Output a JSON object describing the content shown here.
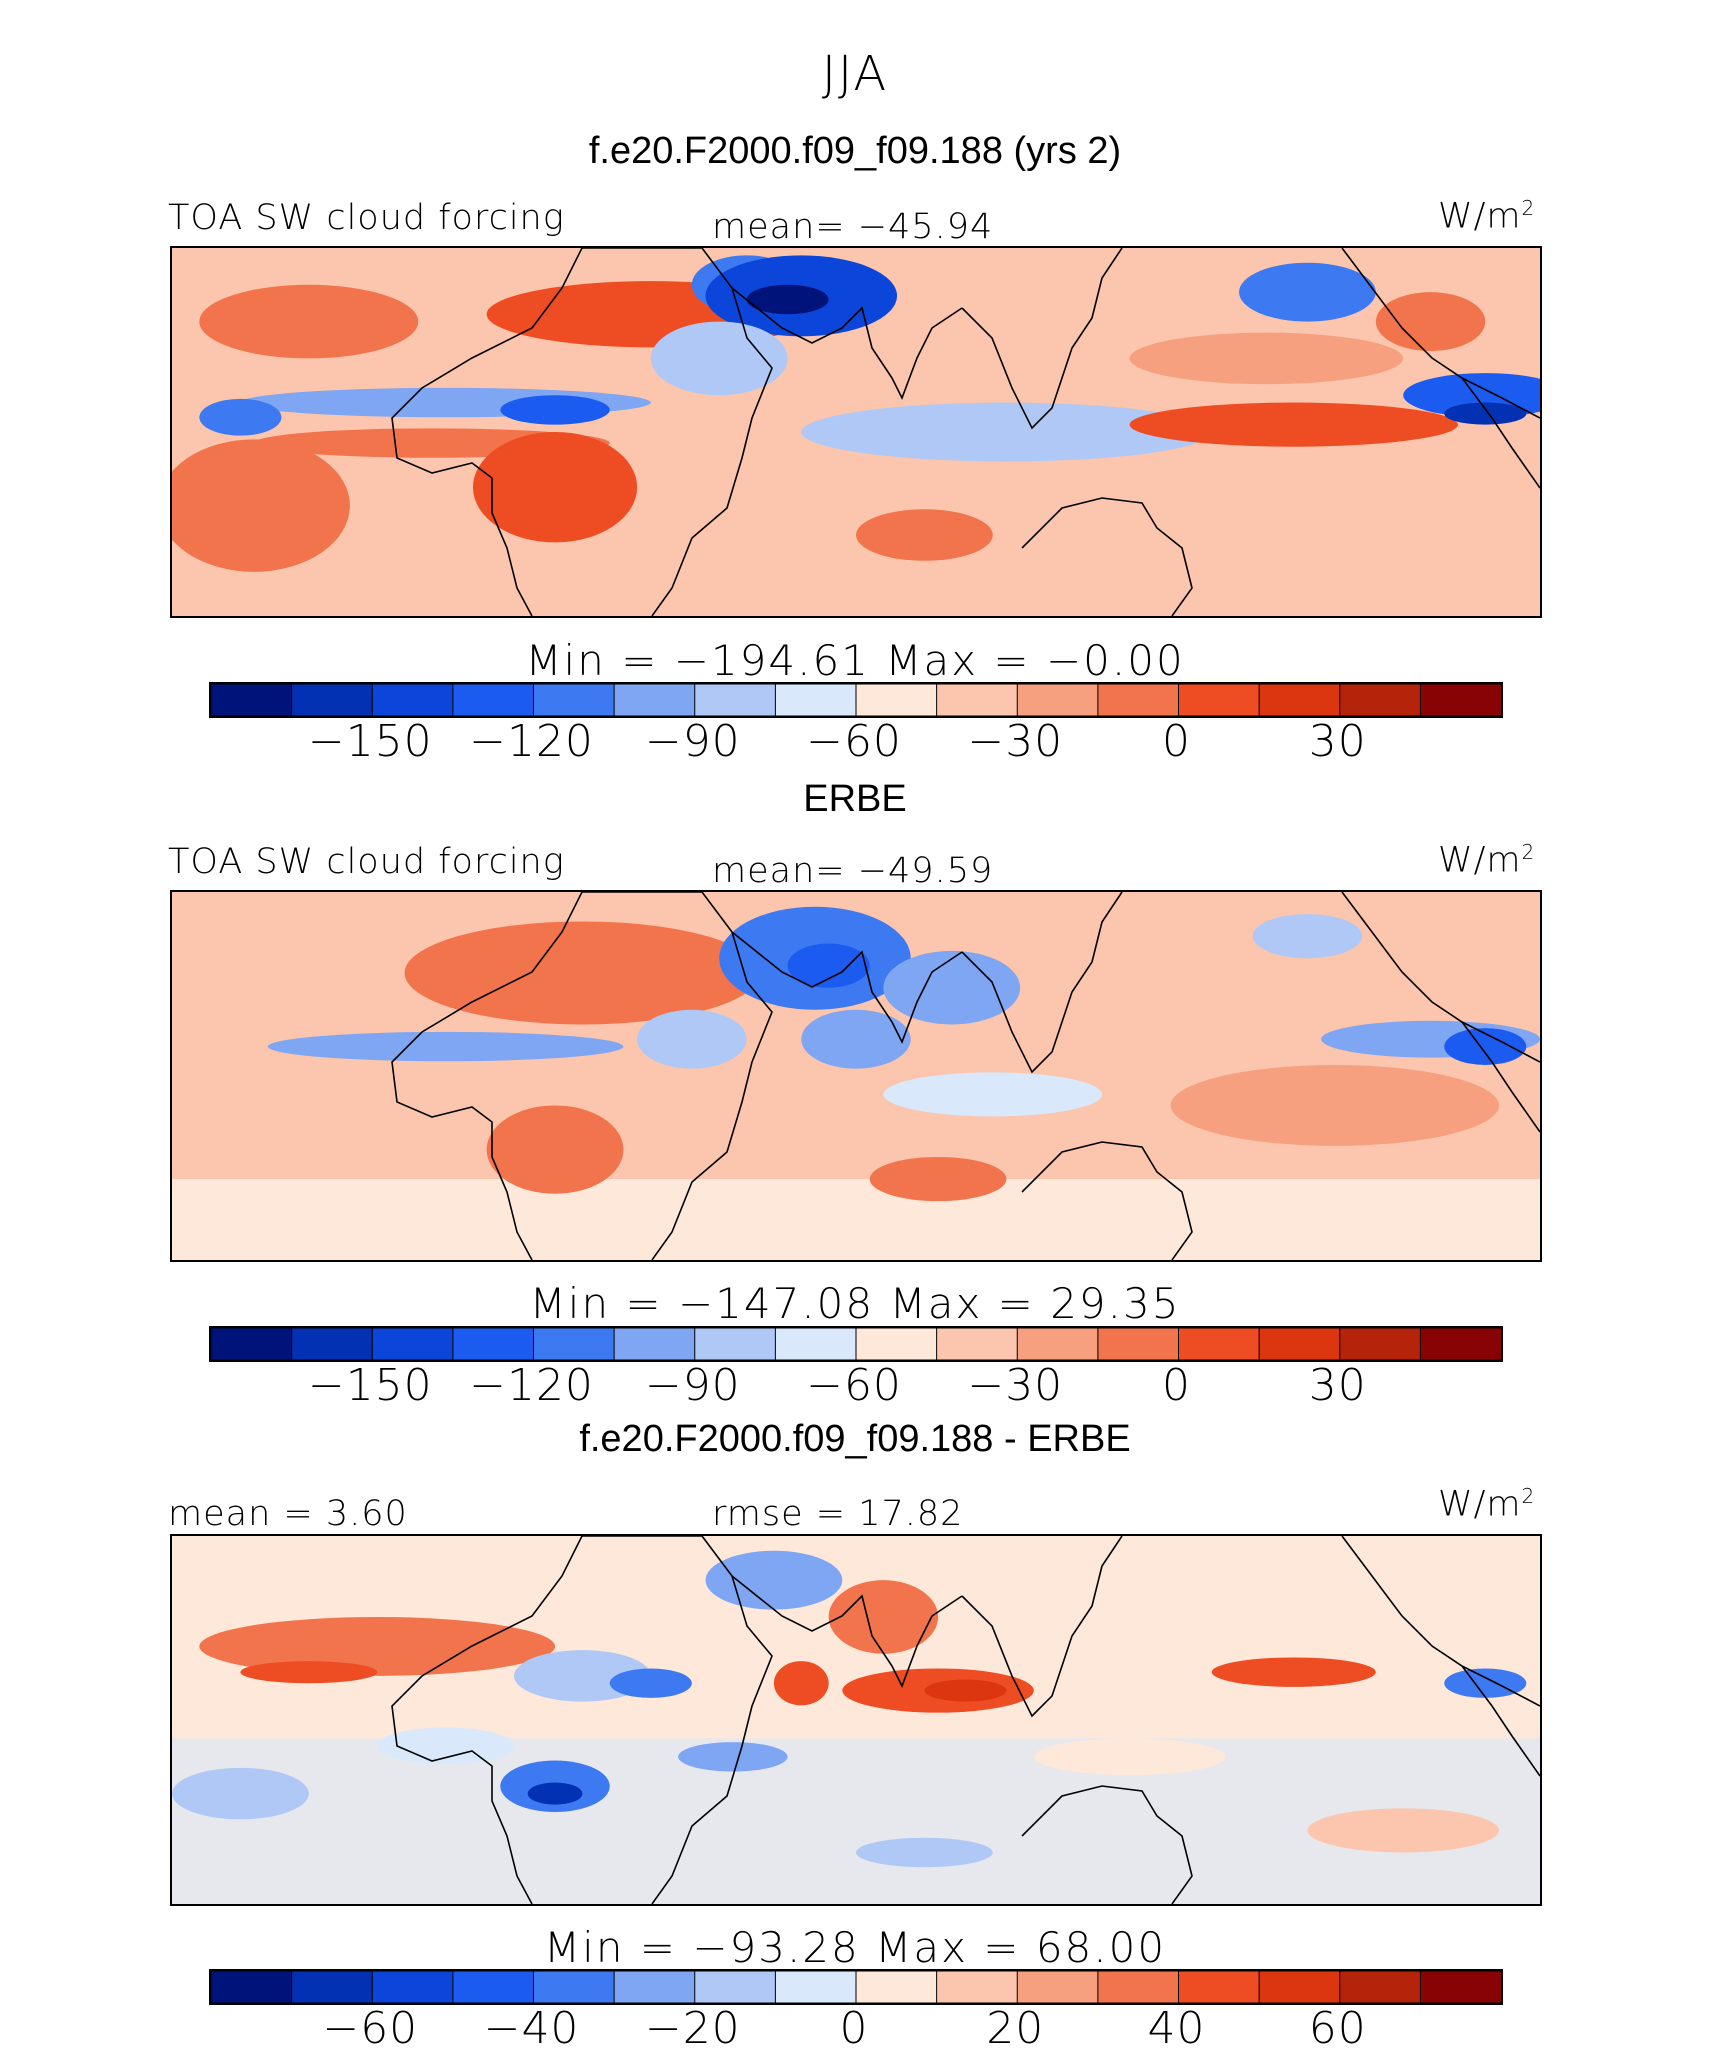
{
  "figure": {
    "season": "JJA",
    "model_title": "f.e20.F2000.f09_f09.188 (yrs 2)",
    "obs_title": "ERBE",
    "diff_title": "f.e20.F2000.f09_f09.188 - ERBE"
  },
  "panels": [
    {
      "id": "model",
      "left_label": "TOA SW cloud forcing",
      "center_label": "mean= −45.94",
      "units": "W/m",
      "units_sup": "2",
      "minmax": "Min  =  −194.61  Max  =    −0.00",
      "colorbar_ticks": [
        "−150",
        "−120",
        "−90",
        "−60",
        "−30",
        "0",
        "30"
      ]
    },
    {
      "id": "obs",
      "left_label": "TOA SW cloud forcing",
      "center_label": "mean= −49.59",
      "units": "W/m",
      "units_sup": "2",
      "minmax": "Min  =  −147.08  Max  =    29.35",
      "colorbar_ticks": [
        "−150",
        "−120",
        "−90",
        "−60",
        "−30",
        "0",
        "30"
      ]
    },
    {
      "id": "diff",
      "left_label": "mean  =    3.60",
      "center_label": "rmse  =   17.82",
      "units": "W/m",
      "units_sup": "2",
      "minmax": "Min  =  −93.28  Max  =    68.00",
      "colorbar_ticks": [
        "−60",
        "−40",
        "−20",
        "0",
        "20",
        "40",
        "60"
      ]
    }
  ],
  "colorbar_colors": [
    "#00137a",
    "#0231b4",
    "#0c45d9",
    "#1c5bef",
    "#3d79f0",
    "#7fa6f2",
    "#afc8f6",
    "#d9e8fb",
    "#fde8da",
    "#fbc6ad",
    "#f6a07f",
    "#f2744c",
    "#ee4c22",
    "#dc3611",
    "#b5230a",
    "#880404"
  ],
  "regions": {
    "model": [
      {
        "cx": 35,
        "cy": 18,
        "rx": 12,
        "ry": 9,
        "level": 12
      },
      {
        "cx": 10,
        "cy": 20,
        "rx": 8,
        "ry": 10,
        "level": 11
      },
      {
        "cx": 42,
        "cy": 10,
        "rx": 4,
        "ry": 8,
        "level": 4
      },
      {
        "cx": 46,
        "cy": 13,
        "rx": 7,
        "ry": 11,
        "level": 2
      },
      {
        "cx": 45,
        "cy": 14,
        "rx": 3,
        "ry": 4,
        "level": 0
      },
      {
        "cx": 40,
        "cy": 30,
        "rx": 5,
        "ry": 10,
        "level": 6
      },
      {
        "cx": 20,
        "cy": 42,
        "rx": 15,
        "ry": 4,
        "level": 5
      },
      {
        "cx": 5,
        "cy": 46,
        "rx": 3,
        "ry": 5,
        "level": 4
      },
      {
        "cx": 28,
        "cy": 44,
        "rx": 4,
        "ry": 4,
        "level": 3
      },
      {
        "cx": 19,
        "cy": 53,
        "rx": 13,
        "ry": 4,
        "level": 11
      },
      {
        "cx": 28,
        "cy": 65,
        "rx": 6,
        "ry": 15,
        "level": 12
      },
      {
        "cx": 6,
        "cy": 70,
        "rx": 7,
        "ry": 18,
        "level": 11
      },
      {
        "cx": 61,
        "cy": 50,
        "rx": 15,
        "ry": 8,
        "level": 6
      },
      {
        "cx": 82,
        "cy": 48,
        "rx": 12,
        "ry": 6,
        "level": 12
      },
      {
        "cx": 80,
        "cy": 30,
        "rx": 10,
        "ry": 7,
        "level": 10
      },
      {
        "cx": 83,
        "cy": 12,
        "rx": 5,
        "ry": 8,
        "level": 4
      },
      {
        "cx": 96,
        "cy": 40,
        "rx": 6,
        "ry": 6,
        "level": 3
      },
      {
        "cx": 96,
        "cy": 45,
        "rx": 3,
        "ry": 3,
        "level": 1
      },
      {
        "cx": 55,
        "cy": 78,
        "rx": 5,
        "ry": 7,
        "level": 11
      },
      {
        "cx": 92,
        "cy": 20,
        "rx": 4,
        "ry": 8,
        "level": 11
      }
    ],
    "obs": [
      {
        "cx": 30,
        "cy": 22,
        "rx": 13,
        "ry": 14,
        "level": 11
      },
      {
        "cx": 10,
        "cy": 20,
        "rx": 7,
        "ry": 9,
        "level": 9
      },
      {
        "cx": 47,
        "cy": 18,
        "rx": 7,
        "ry": 14,
        "level": 4
      },
      {
        "cx": 48,
        "cy": 20,
        "rx": 3,
        "ry": 6,
        "level": 3
      },
      {
        "cx": 57,
        "cy": 26,
        "rx": 5,
        "ry": 10,
        "level": 5
      },
      {
        "cx": 38,
        "cy": 40,
        "rx": 4,
        "ry": 8,
        "level": 6
      },
      {
        "cx": 20,
        "cy": 42,
        "rx": 13,
        "ry": 4,
        "level": 5
      },
      {
        "cx": 50,
        "cy": 40,
        "rx": 4,
        "ry": 8,
        "level": 5
      },
      {
        "cx": 60,
        "cy": 55,
        "rx": 8,
        "ry": 6,
        "level": 7
      },
      {
        "cx": 28,
        "cy": 70,
        "rx": 5,
        "ry": 12,
        "level": 11
      },
      {
        "cx": 13,
        "cy": 58,
        "rx": 5,
        "ry": 7,
        "level": 9
      },
      {
        "cx": 56,
        "cy": 78,
        "rx": 5,
        "ry": 6,
        "level": 11
      },
      {
        "cx": 85,
        "cy": 58,
        "rx": 12,
        "ry": 11,
        "level": 10
      },
      {
        "cx": 75,
        "cy": 23,
        "rx": 9,
        "ry": 11,
        "level": 9
      },
      {
        "cx": 83,
        "cy": 12,
        "rx": 4,
        "ry": 6,
        "level": 6
      },
      {
        "cx": 92,
        "cy": 40,
        "rx": 8,
        "ry": 5,
        "level": 5
      },
      {
        "cx": 96,
        "cy": 42,
        "rx": 3,
        "ry": 5,
        "level": 3
      }
    ],
    "diff": [
      {
        "cx": 15,
        "cy": 30,
        "rx": 13,
        "ry": 8,
        "level": 11
      },
      {
        "cx": 10,
        "cy": 37,
        "rx": 5,
        "ry": 3,
        "level": 12
      },
      {
        "cx": 30,
        "cy": 38,
        "rx": 5,
        "ry": 7,
        "level": 6
      },
      {
        "cx": 35,
        "cy": 40,
        "rx": 3,
        "ry": 4,
        "level": 4
      },
      {
        "cx": 44,
        "cy": 12,
        "rx": 5,
        "ry": 8,
        "level": 5
      },
      {
        "cx": 41,
        "cy": 60,
        "rx": 4,
        "ry": 4,
        "level": 5
      },
      {
        "cx": 28,
        "cy": 68,
        "rx": 4,
        "ry": 7,
        "level": 4
      },
      {
        "cx": 28,
        "cy": 70,
        "rx": 2,
        "ry": 3,
        "level": 1
      },
      {
        "cx": 46,
        "cy": 40,
        "rx": 2,
        "ry": 6,
        "level": 12
      },
      {
        "cx": 52,
        "cy": 22,
        "rx": 4,
        "ry": 10,
        "level": 11
      },
      {
        "cx": 56,
        "cy": 42,
        "rx": 7,
        "ry": 6,
        "level": 12
      },
      {
        "cx": 58,
        "cy": 42,
        "rx": 3,
        "ry": 3,
        "level": 13
      },
      {
        "cx": 82,
        "cy": 37,
        "rx": 6,
        "ry": 4,
        "level": 12
      },
      {
        "cx": 96,
        "cy": 40,
        "rx": 3,
        "ry": 4,
        "level": 4
      },
      {
        "cx": 5,
        "cy": 70,
        "rx": 5,
        "ry": 7,
        "level": 6
      },
      {
        "cx": 20,
        "cy": 57,
        "rx": 5,
        "ry": 5,
        "level": 7
      },
      {
        "cx": 55,
        "cy": 86,
        "rx": 5,
        "ry": 4,
        "level": 6
      },
      {
        "cx": 70,
        "cy": 60,
        "rx": 7,
        "ry": 5,
        "level": 8
      },
      {
        "cx": 90,
        "cy": 80,
        "rx": 7,
        "ry": 6,
        "level": 9
      }
    ]
  }
}
